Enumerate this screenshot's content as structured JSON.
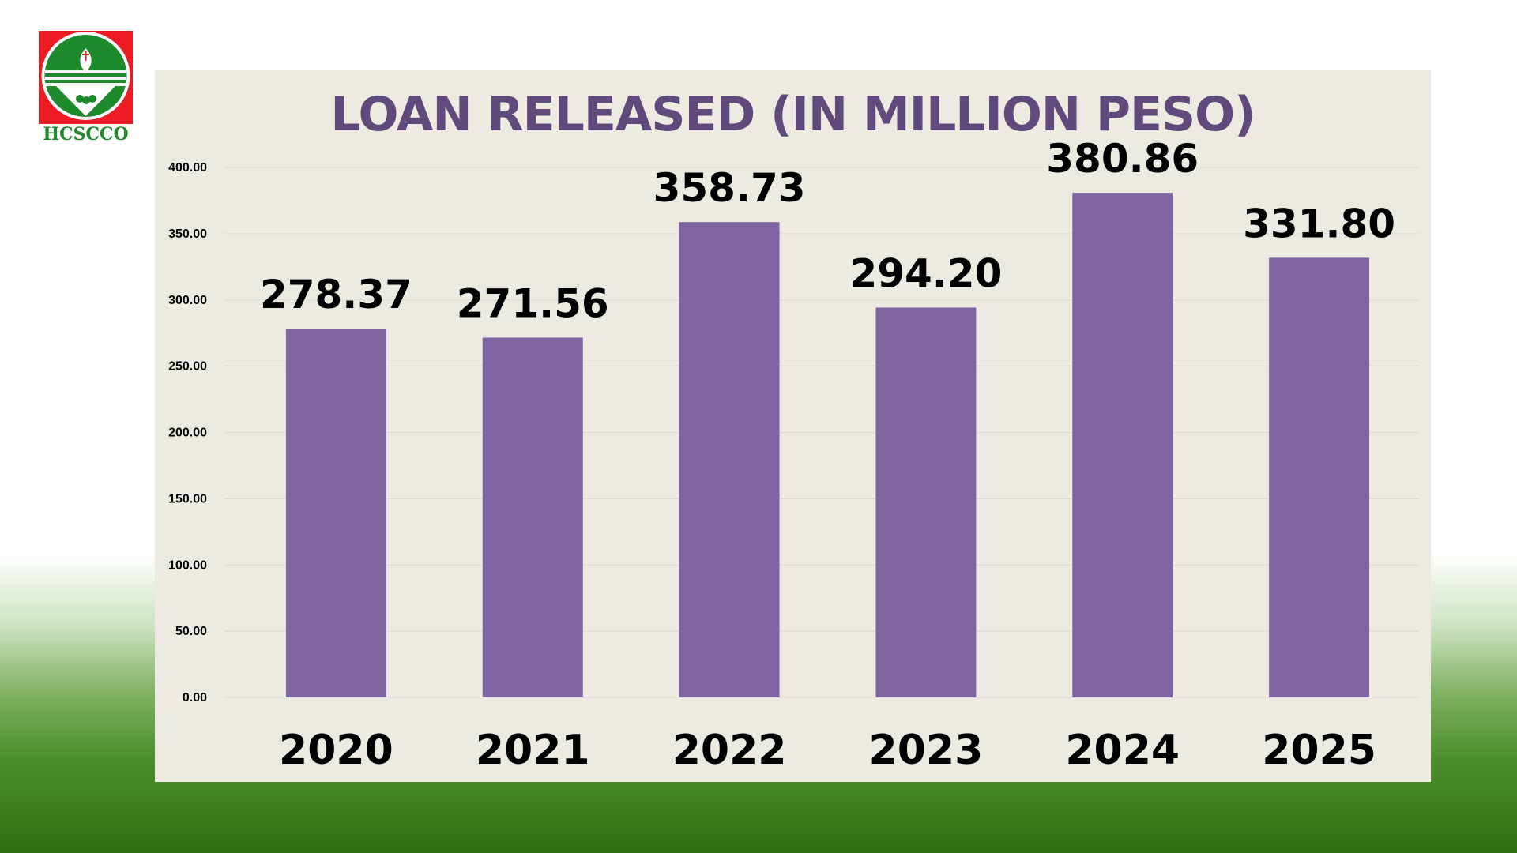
{
  "logo": {
    "text": "HCSCCO"
  },
  "chart_data": {
    "type": "bar",
    "title": "LOAN RELEASED (IN MILLION PESO)",
    "categories": [
      "2020",
      "2021",
      "2022",
      "2023",
      "2024",
      "2025"
    ],
    "values": [
      278.37,
      271.56,
      358.73,
      294.2,
      380.86,
      331.8
    ],
    "data_labels": [
      "278.37",
      "271.56",
      "358.73",
      "294.20",
      "380.86",
      "331.80"
    ],
    "y_ticks": [
      "0.00",
      "50.00",
      "100.00",
      "150.00",
      "200.00",
      "250.00",
      "300.00",
      "350.00",
      "400.00"
    ],
    "ylim": [
      0,
      400
    ],
    "grid": true,
    "xlabel": "",
    "ylabel": "",
    "bar_color": "#8064a2",
    "title_color": "#604a7b"
  }
}
